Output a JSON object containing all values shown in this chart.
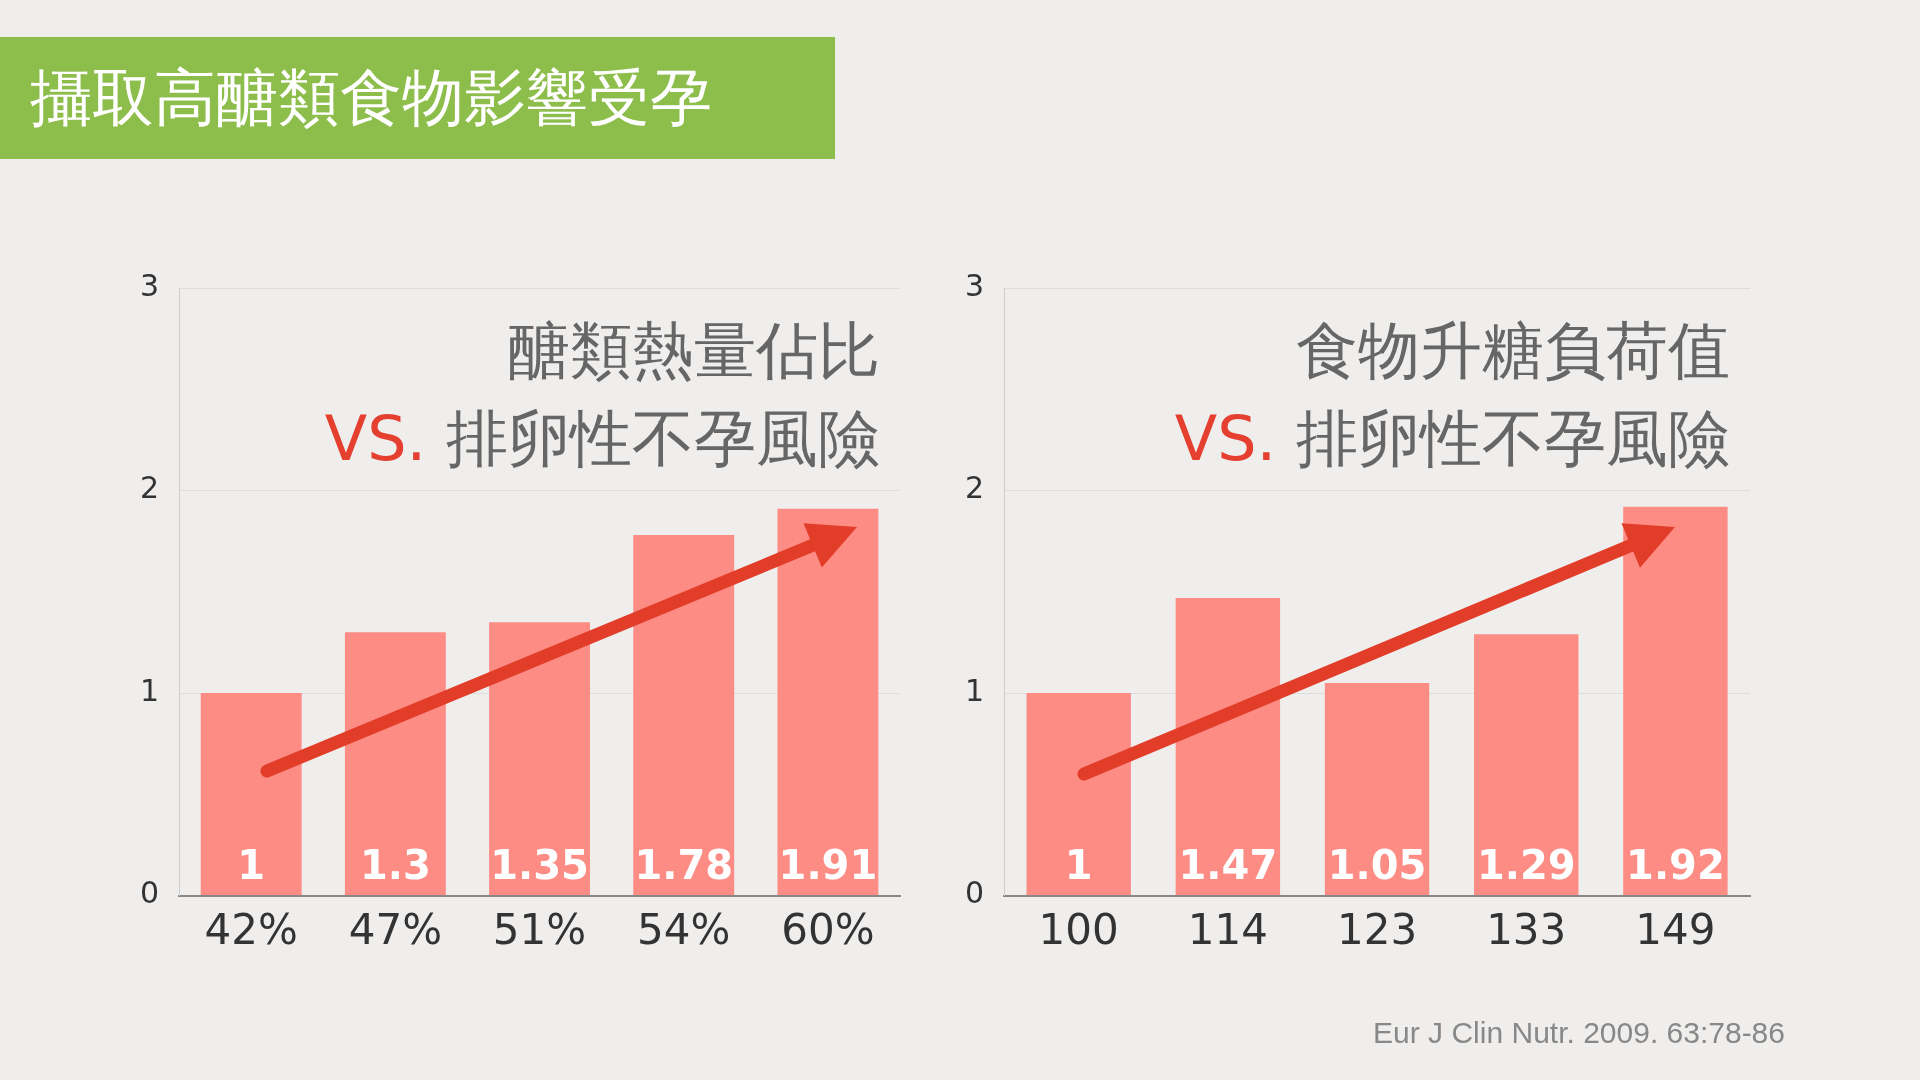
{
  "chart_data": [
    {
      "type": "bar",
      "title": "醣類熱量佔比",
      "subtitle": "VS. 排卵性不孕風險",
      "categories": [
        "42%",
        "47%",
        "51%",
        "54%",
        "60%"
      ],
      "values": [
        1,
        1.3,
        1.35,
        1.78,
        1.91
      ],
      "color": "#fd8c85",
      "ylim": [
        0,
        3
      ],
      "yticks": [
        0,
        1,
        2,
        3
      ],
      "grid": "y",
      "data_labels": true,
      "annotations": [
        "攝取高醣類食物影響受孕"
      ]
    },
    {
      "type": "bar",
      "title": "食物升糖負荷值",
      "subtitle": "VS. 排卵性不孕風險",
      "categories": [
        "100",
        "114",
        "123",
        "133",
        "149"
      ],
      "values": [
        1,
        1.47,
        1.05,
        1.29,
        1.92
      ],
      "color": "#fd8c85",
      "ylim": [
        0,
        3
      ],
      "yticks": [
        0,
        1,
        2,
        3
      ],
      "grid": "y",
      "data_labels": true,
      "annotations": [
        "Eur J Clin Nutr. 2009. 63:78-86"
      ]
    }
  ]
}
